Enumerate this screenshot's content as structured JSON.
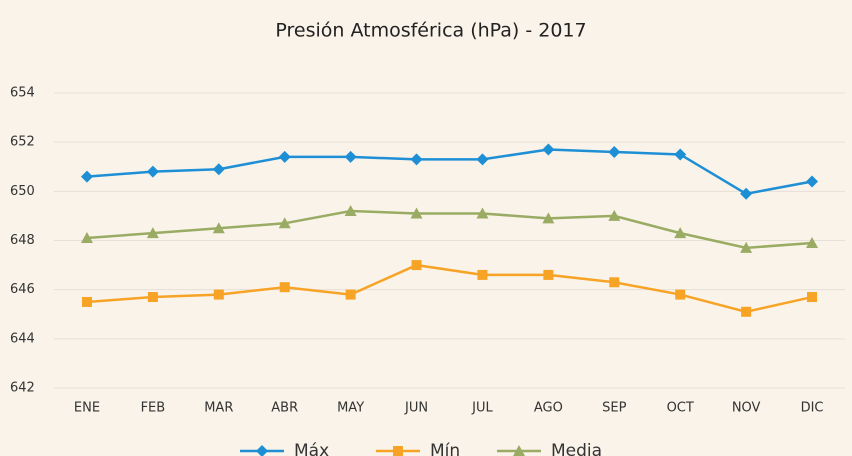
{
  "chart_data": {
    "type": "line",
    "title": "Presión Atmosférica (hPa) - 2017",
    "categories": [
      "ENE",
      "FEB",
      "MAR",
      "ABR",
      "MAY",
      "JUN",
      "JUL",
      "AGO",
      "SEP",
      "OCT",
      "NOV",
      "DIC"
    ],
    "series": [
      {
        "name": "Máx",
        "color": "#1e8fd5",
        "marker": "diamond",
        "values": [
          650.6,
          650.8,
          650.9,
          651.4,
          651.4,
          651.3,
          651.3,
          651.7,
          651.6,
          651.5,
          649.9,
          650.4
        ]
      },
      {
        "name": "Mín",
        "color": "#f7a325",
        "marker": "square",
        "values": [
          645.5,
          645.7,
          645.8,
          646.1,
          645.8,
          647.0,
          646.6,
          646.6,
          646.3,
          645.8,
          645.1,
          645.7
        ]
      },
      {
        "name": "Media",
        "color": "#9aab63",
        "marker": "triangle",
        "values": [
          648.1,
          648.3,
          648.5,
          648.7,
          649.2,
          649.1,
          649.1,
          648.9,
          649.0,
          648.3,
          647.7,
          647.9
        ]
      }
    ],
    "ylim": [
      642,
      654
    ],
    "yticks": [
      642,
      644,
      646,
      648,
      650,
      652,
      654
    ],
    "grid": true,
    "legend": "bottom"
  }
}
